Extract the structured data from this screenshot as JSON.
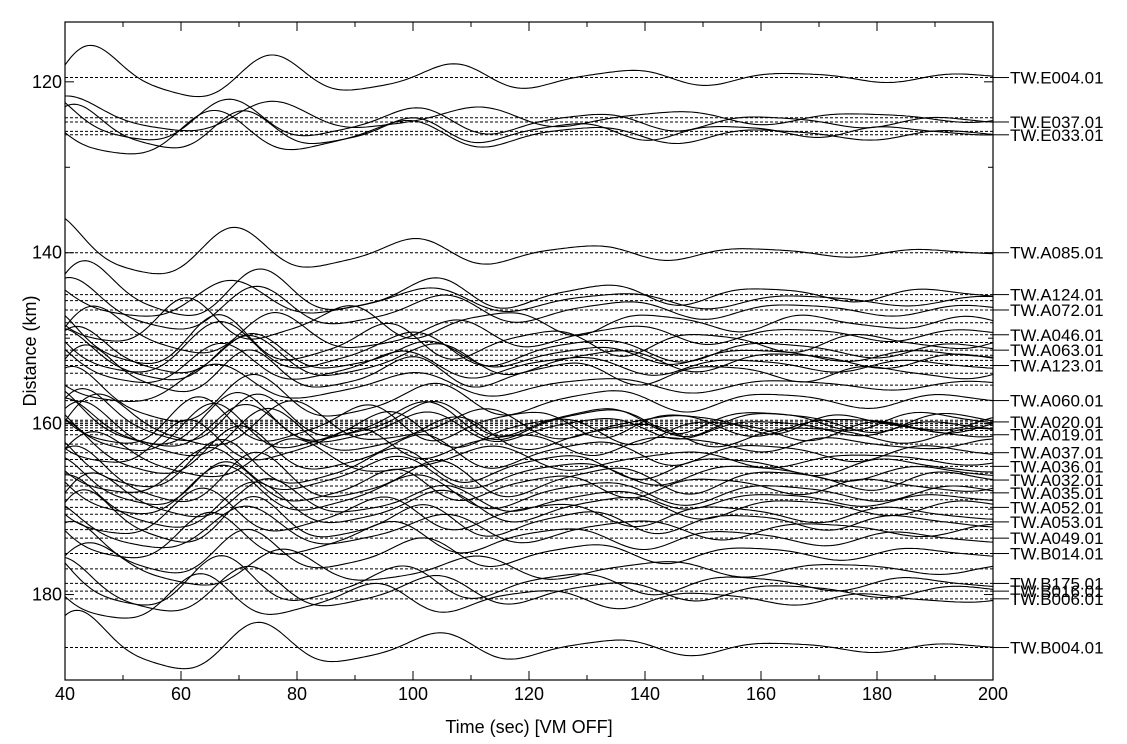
{
  "chart_data": {
    "type": "line",
    "subtype": "seismic-record-section",
    "xlabel": "Time (sec)   [VM OFF]",
    "ylabel": "Distance (km)",
    "xlim": [
      40,
      200
    ],
    "ylim": [
      113,
      190
    ],
    "y_inverted": true,
    "x_ticks": [
      40,
      60,
      80,
      100,
      120,
      140,
      160,
      180,
      200
    ],
    "y_ticks": [
      120,
      140,
      160,
      180
    ],
    "grid": false,
    "colors": {
      "trace": "#000000",
      "frame": "#000000",
      "baseline": "#000000"
    },
    "labeled_stations": [
      {
        "name": "TW.E004.01",
        "distance": 119.5
      },
      {
        "name": "TW.E037.01",
        "distance": 124.7
      },
      {
        "name": "TW.E033.01",
        "distance": 126.2
      },
      {
        "name": "TW.A085.01",
        "distance": 140.0
      },
      {
        "name": "TW.A124.01",
        "distance": 144.9
      },
      {
        "name": "TW.A072.01",
        "distance": 146.7
      },
      {
        "name": "TW.A046.01",
        "distance": 149.6
      },
      {
        "name": "TW.A063.01",
        "distance": 151.4
      },
      {
        "name": "TW.A123.01",
        "distance": 153.2
      },
      {
        "name": "TW.A060.01",
        "distance": 157.3
      },
      {
        "name": "TW.A020.01",
        "distance": 159.8
      },
      {
        "name": "TW.A019.01",
        "distance": 161.3
      },
      {
        "name": "TW.A037.01",
        "distance": 163.4
      },
      {
        "name": "TW.A036.01",
        "distance": 165.0
      },
      {
        "name": "TW.A032.01",
        "distance": 166.6
      },
      {
        "name": "TW.A035.01",
        "distance": 168.1
      },
      {
        "name": "TW.A052.01",
        "distance": 169.8
      },
      {
        "name": "TW.A053.01",
        "distance": 171.5
      },
      {
        "name": "TW.A049.01",
        "distance": 173.4
      },
      {
        "name": "TW.B014.01",
        "distance": 175.2
      },
      {
        "name": "TW.B175.01",
        "distance": 178.7
      },
      {
        "name": "TW.B016.01",
        "distance": 179.6
      },
      {
        "name": "TW.B006.01",
        "distance": 180.5
      },
      {
        "name": "TW.B004.01",
        "distance": 186.2
      }
    ],
    "series": [
      {
        "distance": 119.5,
        "amplitude": 3.5,
        "period": 30,
        "phase": 0.3,
        "decay": 0.014
      },
      {
        "distance": 124.2,
        "amplitude": 2.2,
        "period": 34,
        "phase": 1.2,
        "decay": 0.01
      },
      {
        "distance": 124.7,
        "amplitude": 3.0,
        "period": 31,
        "phase": 2.1,
        "decay": 0.012
      },
      {
        "distance": 125.8,
        "amplitude": 2.8,
        "period": 28,
        "phase": 0.9,
        "decay": 0.012
      },
      {
        "distance": 126.2,
        "amplitude": 3.2,
        "period": 32,
        "phase": 2.8,
        "decay": 0.013
      },
      {
        "distance": 140.0,
        "amplitude": 3.8,
        "period": 30,
        "phase": 1.7,
        "decay": 0.016
      },
      {
        "distance": 144.9,
        "amplitude": 3.6,
        "period": 29,
        "phase": 0.5,
        "decay": 0.012
      },
      {
        "distance": 145.6,
        "amplitude": 2.6,
        "period": 33,
        "phase": 2.4,
        "decay": 0.011
      },
      {
        "distance": 146.7,
        "amplitude": 3.3,
        "period": 31,
        "phase": 1.1,
        "decay": 0.012
      },
      {
        "distance": 148.2,
        "amplitude": 2.9,
        "period": 27,
        "phase": 3.0,
        "decay": 0.01
      },
      {
        "distance": 149.6,
        "amplitude": 3.1,
        "period": 30,
        "phase": 0.2,
        "decay": 0.011
      },
      {
        "distance": 150.5,
        "amplitude": 3.4,
        "period": 28,
        "phase": 1.9,
        "decay": 0.01
      },
      {
        "distance": 151.4,
        "amplitude": 3.6,
        "period": 32,
        "phase": 2.6,
        "decay": 0.011
      },
      {
        "distance": 152.0,
        "amplitude": 3.0,
        "period": 29,
        "phase": 0.8,
        "decay": 0.012
      },
      {
        "distance": 152.6,
        "amplitude": 3.2,
        "period": 31,
        "phase": 1.4,
        "decay": 0.01
      },
      {
        "distance": 153.2,
        "amplitude": 2.8,
        "period": 30,
        "phase": 2.2,
        "decay": 0.011
      },
      {
        "distance": 154.1,
        "amplitude": 3.0,
        "period": 27,
        "phase": 0.4,
        "decay": 0.01
      },
      {
        "distance": 155.5,
        "amplitude": 2.7,
        "period": 33,
        "phase": 2.9,
        "decay": 0.012
      },
      {
        "distance": 157.3,
        "amplitude": 3.5,
        "period": 30,
        "phase": 1.0,
        "decay": 0.011
      },
      {
        "distance": 159.6,
        "amplitude": 3.3,
        "period": 29,
        "phase": 0.6,
        "decay": 0.009
      },
      {
        "distance": 159.8,
        "amplitude": 3.6,
        "period": 31,
        "phase": 1.8,
        "decay": 0.009
      },
      {
        "distance": 160.0,
        "amplitude": 3.1,
        "period": 28,
        "phase": 2.7,
        "decay": 0.009
      },
      {
        "distance": 160.2,
        "amplitude": 3.4,
        "period": 32,
        "phase": 0.1,
        "decay": 0.01
      },
      {
        "distance": 160.5,
        "amplitude": 3.0,
        "period": 30,
        "phase": 1.3,
        "decay": 0.01
      },
      {
        "distance": 160.8,
        "amplitude": 3.2,
        "period": 29,
        "phase": 2.3,
        "decay": 0.009
      },
      {
        "distance": 161.3,
        "amplitude": 3.5,
        "period": 31,
        "phase": 0.7,
        "decay": 0.01
      },
      {
        "distance": 162.4,
        "amplitude": 2.9,
        "period": 28,
        "phase": 3.1,
        "decay": 0.011
      },
      {
        "distance": 163.4,
        "amplitude": 3.4,
        "period": 30,
        "phase": 1.5,
        "decay": 0.01
      },
      {
        "distance": 164.2,
        "amplitude": 3.0,
        "period": 33,
        "phase": 0.3,
        "decay": 0.011
      },
      {
        "distance": 165.0,
        "amplitude": 3.3,
        "period": 29,
        "phase": 2.0,
        "decay": 0.01
      },
      {
        "distance": 165.8,
        "amplitude": 3.1,
        "period": 31,
        "phase": 2.8,
        "decay": 0.01
      },
      {
        "distance": 166.6,
        "amplitude": 3.5,
        "period": 30,
        "phase": 0.9,
        "decay": 0.009
      },
      {
        "distance": 167.3,
        "amplitude": 3.0,
        "period": 28,
        "phase": 1.6,
        "decay": 0.01
      },
      {
        "distance": 168.1,
        "amplitude": 3.4,
        "period": 32,
        "phase": 2.5,
        "decay": 0.01
      },
      {
        "distance": 168.9,
        "amplitude": 2.9,
        "period": 29,
        "phase": 0.2,
        "decay": 0.011
      },
      {
        "distance": 169.8,
        "amplitude": 3.3,
        "period": 31,
        "phase": 1.2,
        "decay": 0.01
      },
      {
        "distance": 170.6,
        "amplitude": 3.1,
        "period": 30,
        "phase": 2.9,
        "decay": 0.01
      },
      {
        "distance": 171.5,
        "amplitude": 3.4,
        "period": 28,
        "phase": 0.5,
        "decay": 0.011
      },
      {
        "distance": 172.4,
        "amplitude": 3.0,
        "period": 33,
        "phase": 1.9,
        "decay": 0.01
      },
      {
        "distance": 173.4,
        "amplitude": 3.2,
        "period": 30,
        "phase": 2.6,
        "decay": 0.011
      },
      {
        "distance": 175.2,
        "amplitude": 3.3,
        "period": 29,
        "phase": 1.0,
        "decay": 0.012
      },
      {
        "distance": 177.0,
        "amplitude": 2.8,
        "period": 32,
        "phase": 0.4,
        "decay": 0.011
      },
      {
        "distance": 178.7,
        "amplitude": 3.6,
        "period": 30,
        "phase": 2.2,
        "decay": 0.012
      },
      {
        "distance": 179.6,
        "amplitude": 3.4,
        "period": 31,
        "phase": 1.4,
        "decay": 0.012
      },
      {
        "distance": 180.5,
        "amplitude": 3.2,
        "period": 29,
        "phase": 2.8,
        "decay": 0.013
      },
      {
        "distance": 186.2,
        "amplitude": 3.9,
        "period": 30,
        "phase": 0.8,
        "decay": 0.015
      }
    ]
  }
}
